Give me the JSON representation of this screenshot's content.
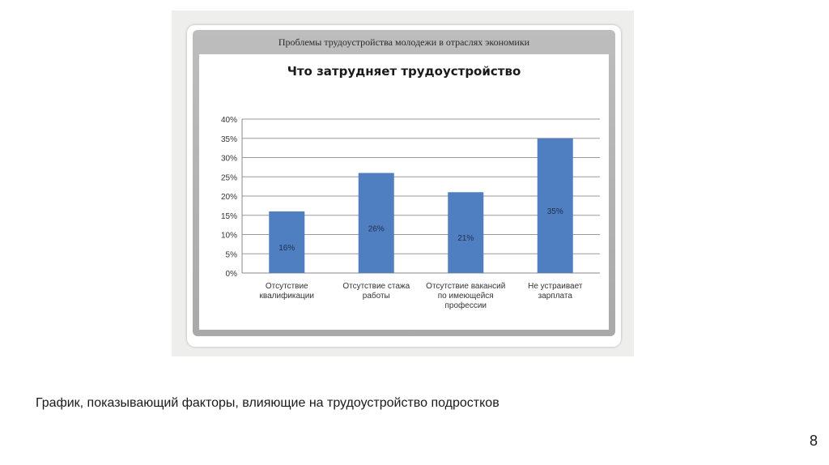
{
  "slide": {
    "caption": "График, показывающий факторы, влияющие на трудоустройство подростков",
    "page_number": "8"
  },
  "frame": {
    "header": "Проблемы трудоустройства молодежи в отраслях экономики"
  },
  "chart_data": {
    "type": "bar",
    "title": "Что затрудняет трудоустройство",
    "categories": [
      "Отсутствие квалификации",
      "Отсутствие стажа работы",
      "Отсутствие вакансий по имеющейся профессии",
      "Не устраивает зарплата"
    ],
    "category_lines": [
      [
        "Отсутствие",
        "квалификации"
      ],
      [
        "Отсутствие стажа",
        "работы"
      ],
      [
        "Отсутствие вакансий",
        "по имеющейся",
        "профессии"
      ],
      [
        "Не устраивает",
        "зарплата"
      ]
    ],
    "values": [
      16,
      26,
      21,
      35
    ],
    "data_labels": [
      "16%",
      "26%",
      "21%",
      "35%"
    ],
    "yticks": [
      "0%",
      "5%",
      "10%",
      "15%",
      "20%",
      "25%",
      "30%",
      "35%",
      "40%"
    ],
    "ylim": [
      0,
      40
    ],
    "grid": true,
    "legend": "none",
    "bar_color": "#4f7ec1"
  }
}
